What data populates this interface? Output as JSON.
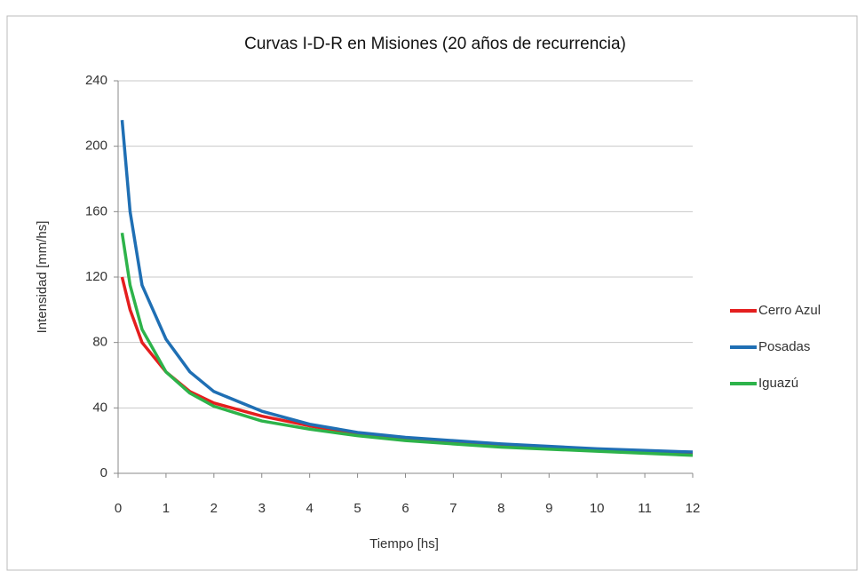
{
  "chart_data": {
    "type": "line",
    "title": "Curvas I-D-R en Misiones (20  años de recurrencia)",
    "x_label": "Tiempo [hs]",
    "y_label": "Intensidad [mm/hs]",
    "x": [
      0.083,
      0.25,
      0.5,
      1,
      1.5,
      2,
      3,
      4,
      5,
      6,
      8,
      10,
      12
    ],
    "series": [
      {
        "name": "Cerro Azul",
        "color": "#e41e1e",
        "values": [
          120,
          100,
          80,
          62,
          50,
          43,
          35,
          29,
          24,
          21,
          17,
          14,
          12
        ]
      },
      {
        "name": "Posadas",
        "color": "#1f6fb4",
        "values": [
          216,
          160,
          115,
          82,
          62,
          50,
          38,
          30,
          25,
          22,
          18,
          15,
          13
        ]
      },
      {
        "name": "Iguazú",
        "color": "#2db34a",
        "values": [
          147,
          115,
          88,
          62,
          49,
          41,
          32,
          27,
          23,
          20,
          16,
          13.5,
          11
        ]
      }
    ],
    "xlim": [
      0,
      12
    ],
    "xticks": [
      0,
      1,
      2,
      3,
      4,
      5,
      6,
      7,
      8,
      9,
      10,
      11,
      12
    ],
    "ylim": [
      0,
      240
    ],
    "yticks": [
      0,
      40,
      80,
      120,
      160,
      200,
      240
    ],
    "grid": true,
    "legend": "right"
  }
}
